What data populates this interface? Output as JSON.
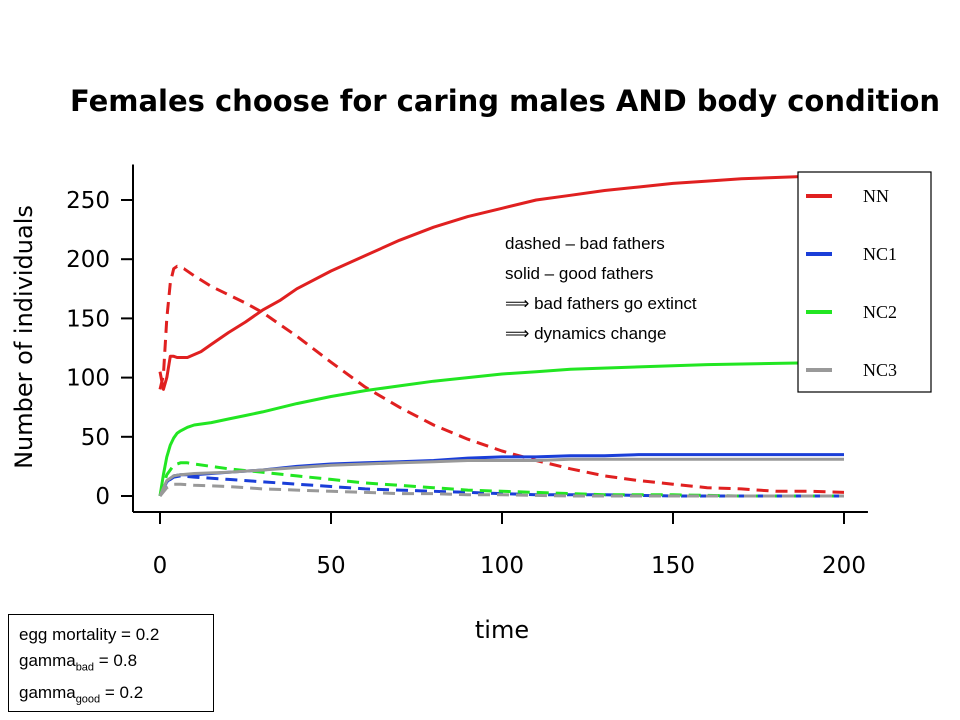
{
  "chart_data": {
    "type": "line",
    "title": "Females choose for caring males AND body condition",
    "xlabel": "time",
    "ylabel": "Number of individuals",
    "xlim": [
      0,
      207
    ],
    "ylim": [
      -12,
      280
    ],
    "xticks": [
      0,
      50,
      100,
      150,
      200
    ],
    "yticks": [
      0,
      50,
      100,
      150,
      200,
      250
    ],
    "xtick_labels": [
      "0",
      "50",
      "100",
      "150",
      "200"
    ],
    "ytick_labels": [
      "0",
      "50",
      "100",
      "150",
      "200",
      "250"
    ],
    "grid": false,
    "legend_position": "top-right",
    "legend": [
      {
        "label": "NN",
        "color": "#e02020"
      },
      {
        "label": "NC1",
        "color": "#1a3ed8"
      },
      {
        "label": "NC2",
        "color": "#22e622"
      },
      {
        "label": "NC3",
        "color": "#999999"
      }
    ],
    "annotations": [
      "dashed – bad fathers",
      "solid – good fathers",
      "⟹ bad fathers go extinct",
      "⟹ dynamics change"
    ],
    "series": [
      {
        "name": "NN",
        "style": "solid",
        "color": "#e02020",
        "x": [
          0,
          1,
          2,
          3,
          4,
          5,
          8,
          12,
          15,
          20,
          25,
          30,
          35,
          40,
          50,
          60,
          70,
          80,
          90,
          100,
          110,
          120,
          130,
          140,
          150,
          160,
          170,
          180,
          190,
          200
        ],
        "y": [
          105,
          90,
          100,
          118,
          118,
          117,
          117,
          122,
          128,
          138,
          147,
          157,
          165,
          175,
          190,
          203,
          216,
          227,
          236,
          243,
          250,
          254,
          258,
          261,
          264,
          266,
          268,
          269,
          270,
          270
        ]
      },
      {
        "name": "NN",
        "style": "dashed",
        "color": "#e02020",
        "x": [
          0,
          1,
          2,
          3,
          4,
          5,
          7,
          10,
          15,
          20,
          25,
          30,
          40,
          50,
          60,
          70,
          80,
          90,
          100,
          110,
          120,
          130,
          140,
          150,
          160,
          170,
          180,
          190,
          200
        ],
        "y": [
          90,
          102,
          150,
          180,
          192,
          194,
          192,
          186,
          177,
          170,
          163,
          155,
          135,
          113,
          92,
          75,
          60,
          48,
          38,
          30,
          23,
          17,
          13,
          10,
          7,
          6,
          4,
          4,
          3
        ]
      },
      {
        "name": "NC1",
        "style": "solid",
        "color": "#1a3ed8",
        "x": [
          0,
          2,
          4,
          6,
          10,
          20,
          30,
          40,
          50,
          60,
          70,
          80,
          90,
          100,
          110,
          120,
          130,
          140,
          150,
          170,
          200
        ],
        "y": [
          0,
          12,
          17,
          18,
          18,
          20,
          22,
          25,
          27,
          28,
          29,
          30,
          32,
          33,
          33,
          34,
          34,
          35,
          35,
          35,
          35
        ]
      },
      {
        "name": "NC1",
        "style": "dashed",
        "color": "#1a3ed8",
        "x": [
          0,
          2,
          4,
          6,
          10,
          20,
          30,
          40,
          50,
          60,
          70,
          80,
          90,
          100,
          110,
          120,
          130,
          150,
          170,
          200
        ],
        "y": [
          0,
          12,
          16,
          17,
          16,
          14,
          12,
          10,
          8,
          6,
          5,
          4,
          3,
          2,
          1,
          1,
          1,
          0,
          0,
          0
        ]
      },
      {
        "name": "NC2",
        "style": "solid",
        "color": "#22e622",
        "x": [
          0,
          1,
          2,
          3,
          4,
          5,
          6,
          8,
          10,
          15,
          20,
          25,
          30,
          40,
          50,
          60,
          70,
          80,
          90,
          100,
          110,
          120,
          140,
          160,
          180,
          200
        ],
        "y": [
          0,
          18,
          33,
          43,
          49,
          53,
          55,
          58,
          60,
          62,
          65,
          68,
          71,
          78,
          84,
          89,
          93,
          97,
          100,
          103,
          105,
          107,
          109,
          111,
          112,
          113
        ]
      },
      {
        "name": "NC2",
        "style": "dashed",
        "color": "#22e622",
        "x": [
          0,
          2,
          4,
          6,
          8,
          10,
          15,
          20,
          30,
          40,
          50,
          60,
          70,
          80,
          90,
          100,
          110,
          120,
          130,
          150,
          170,
          200
        ],
        "y": [
          0,
          18,
          26,
          28,
          28,
          27,
          25,
          23,
          20,
          17,
          14,
          11,
          9,
          7,
          5,
          4,
          3,
          2,
          1,
          1,
          0,
          0
        ]
      },
      {
        "name": "NC3",
        "style": "solid",
        "color": "#999999",
        "x": [
          0,
          2,
          4,
          6,
          10,
          20,
          30,
          40,
          50,
          60,
          70,
          80,
          90,
          100,
          110,
          120,
          140,
          160,
          200
        ],
        "y": [
          0,
          13,
          17,
          18,
          19,
          20,
          22,
          24,
          26,
          27,
          28,
          29,
          30,
          30,
          30,
          31,
          31,
          31,
          31
        ]
      },
      {
        "name": "NC3",
        "style": "dashed",
        "color": "#999999",
        "x": [
          0,
          2,
          4,
          6,
          10,
          20,
          30,
          40,
          50,
          60,
          70,
          80,
          90,
          100,
          120,
          150,
          200
        ],
        "y": [
          0,
          7,
          10,
          10,
          9,
          8,
          6,
          5,
          4,
          3,
          2,
          2,
          1,
          1,
          0,
          0,
          0
        ]
      }
    ]
  },
  "params": {
    "line1": "egg mortality = 0.2",
    "line2_prefix": "gamma",
    "line2_sub": "bad",
    "line2_value": " = 0.8",
    "line3_prefix": "gamma",
    "line3_sub": "good",
    "line3_value": " = 0.2"
  }
}
